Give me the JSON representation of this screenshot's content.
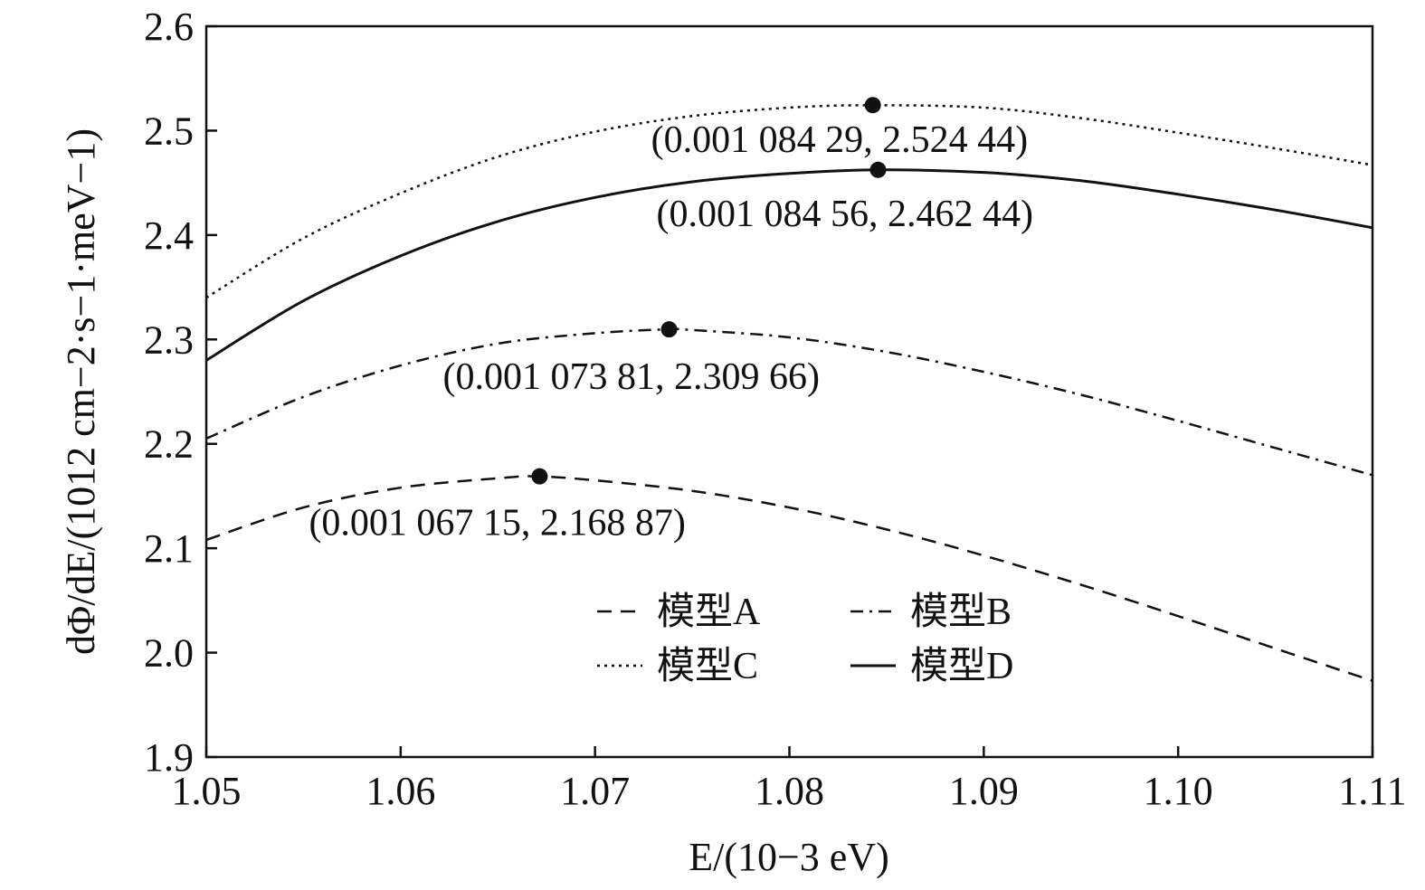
{
  "chart_data": {
    "type": "line",
    "xlabel": "E/(10−3 eV)",
    "ylabel": "dΦ/dE/(1012 cm−2·s−1·meV−1)",
    "xlim": [
      1.05,
      1.11
    ],
    "ylim": [
      1.9,
      2.6
    ],
    "x_ticks": [
      "1.05",
      "1.06",
      "1.07",
      "1.08",
      "1.09",
      "1.10",
      "1.11"
    ],
    "y_ticks": [
      "1.9",
      "2.0",
      "2.1",
      "2.2",
      "2.3",
      "2.4",
      "2.5",
      "2.6"
    ],
    "grid": false,
    "legend_position": "bottom-center",
    "series": [
      {
        "name": "模型A",
        "style": "dashed",
        "x": [
          1.05,
          1.055,
          1.06,
          1.065,
          1.067,
          1.07,
          1.075,
          1.08,
          1.085,
          1.09,
          1.095,
          1.1,
          1.105,
          1.11
        ],
        "y": [
          2.108,
          2.139,
          2.158,
          2.167,
          2.1689,
          2.165,
          2.155,
          2.139,
          2.118,
          2.093,
          2.065,
          2.035,
          2.004,
          1.973
        ],
        "peak": {
          "x": 1.06715,
          "y": 2.16887,
          "label": "(0.001 067 15, 2.168 87)"
        }
      },
      {
        "name": "模型B",
        "style": "dashdot",
        "x": [
          1.05,
          1.055,
          1.06,
          1.065,
          1.07,
          1.0738,
          1.075,
          1.08,
          1.085,
          1.09,
          1.095,
          1.1,
          1.105,
          1.11
        ],
        "y": [
          2.205,
          2.245,
          2.275,
          2.296,
          2.306,
          2.3097,
          2.309,
          2.302,
          2.288,
          2.269,
          2.247,
          2.222,
          2.196,
          2.17
        ],
        "peak": {
          "x": 1.07381,
          "y": 2.30966,
          "label": "(0.001 073 81, 2.309 66)"
        }
      },
      {
        "name": "模型C",
        "style": "dotted",
        "x": [
          1.05,
          1.055,
          1.06,
          1.065,
          1.07,
          1.075,
          1.08,
          1.0843,
          1.09,
          1.095,
          1.1,
          1.105,
          1.11
        ],
        "y": [
          2.34,
          2.397,
          2.44,
          2.475,
          2.499,
          2.514,
          2.522,
          2.5244,
          2.522,
          2.512,
          2.498,
          2.483,
          2.467
        ],
        "peak": {
          "x": 1.08429,
          "y": 2.52444,
          "label": "(0.001 084 29, 2.524 44)"
        }
      },
      {
        "name": "模型D",
        "style": "solid",
        "x": [
          1.05,
          1.055,
          1.06,
          1.065,
          1.07,
          1.075,
          1.08,
          1.0846,
          1.09,
          1.095,
          1.1,
          1.105,
          1.11
        ],
        "y": [
          2.28,
          2.337,
          2.38,
          2.413,
          2.436,
          2.451,
          2.459,
          2.4624,
          2.46,
          2.452,
          2.439,
          2.424,
          2.407
        ],
        "peak": {
          "x": 1.08456,
          "y": 2.46244,
          "label": "(0.001 084 56, 2.462 44)"
        }
      }
    ]
  }
}
